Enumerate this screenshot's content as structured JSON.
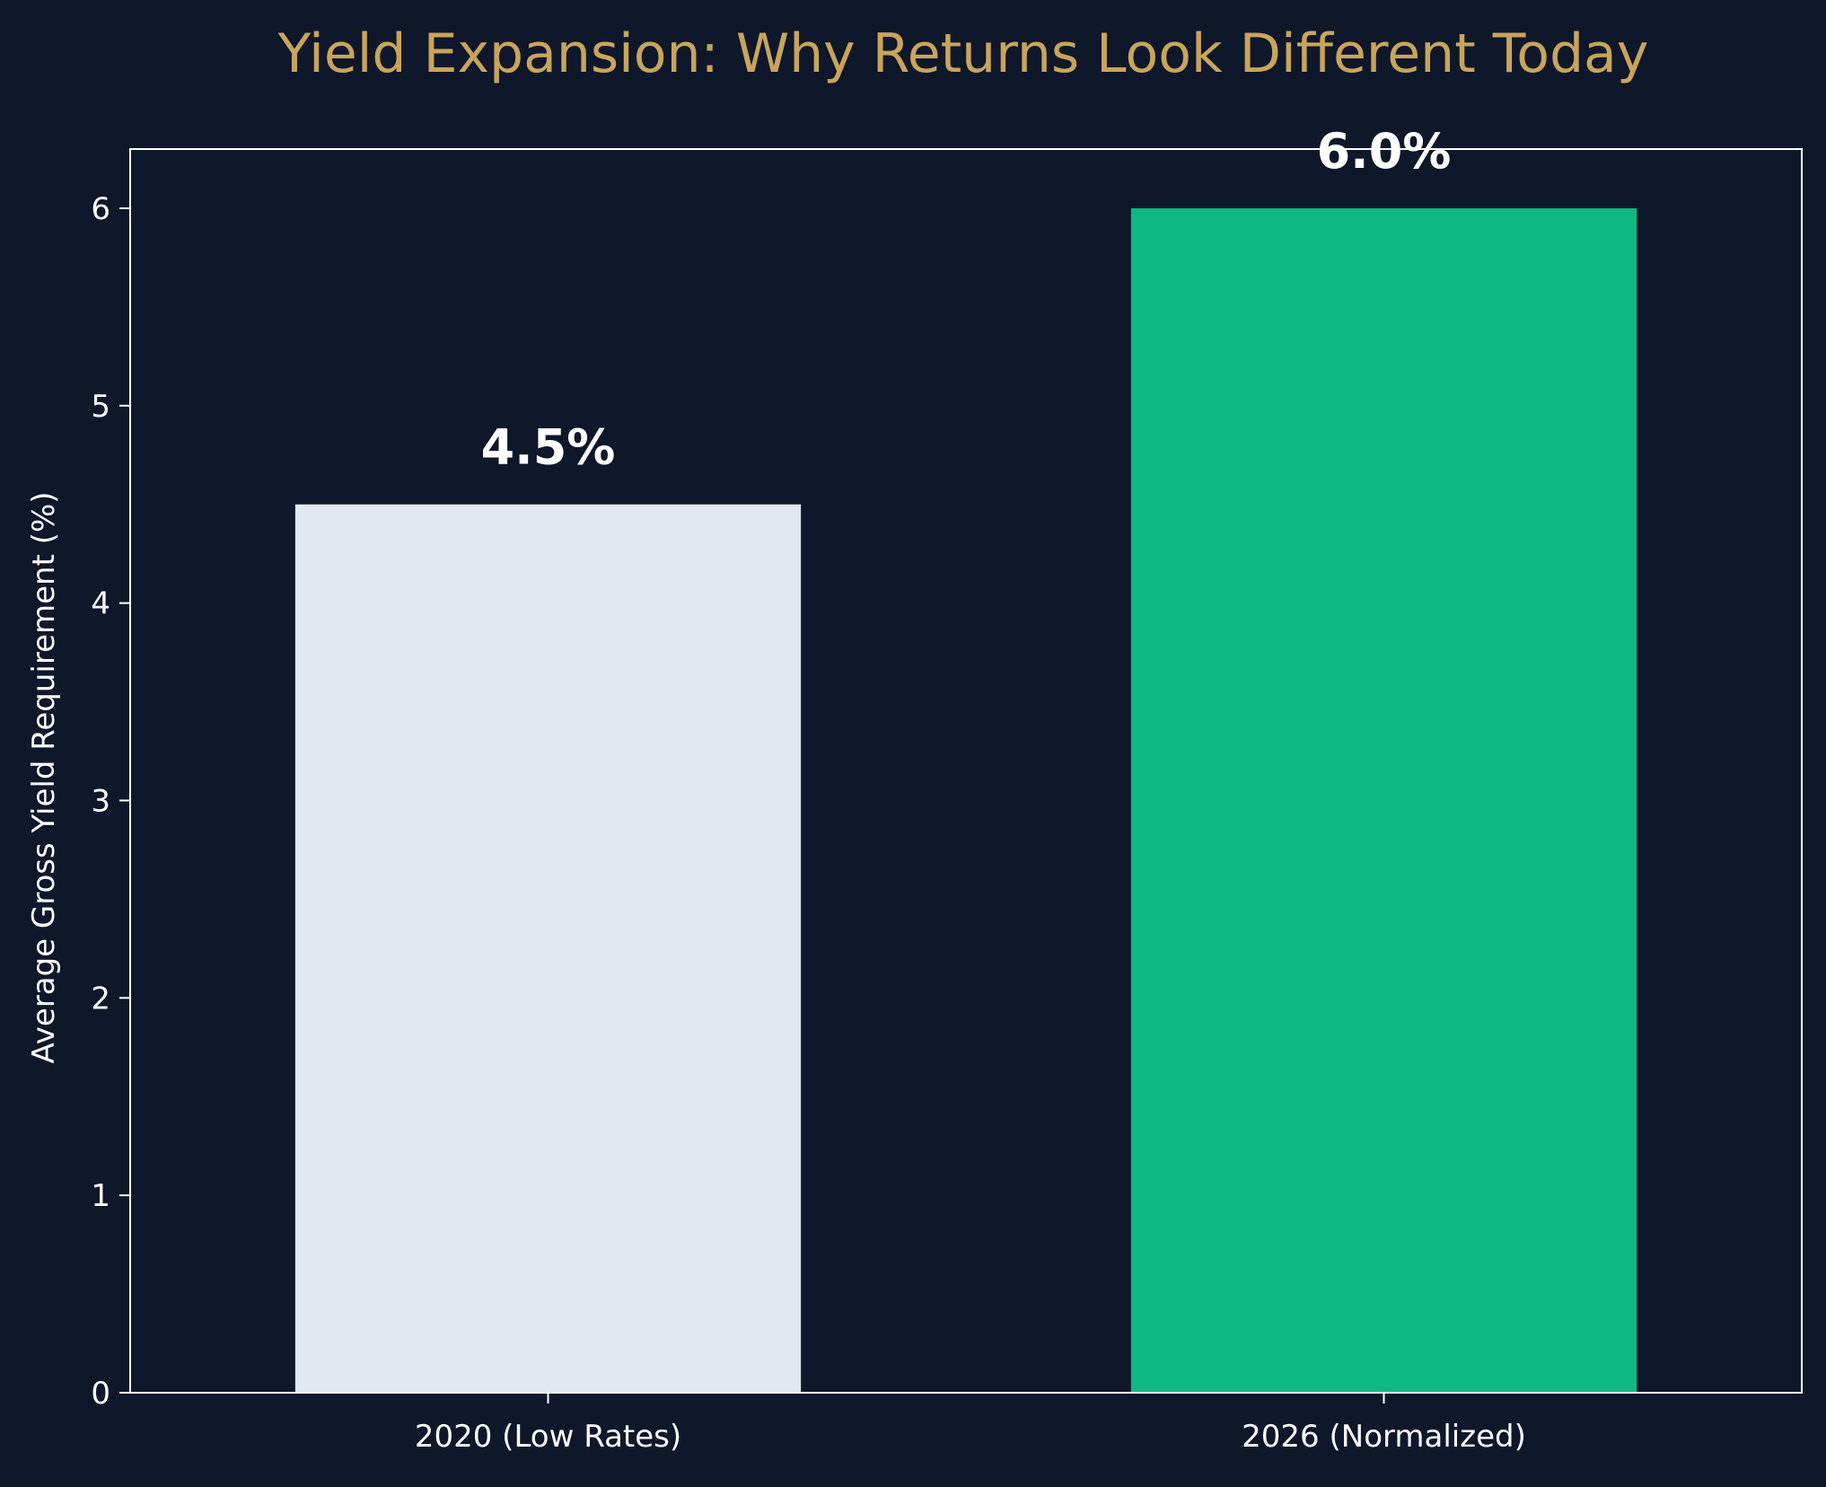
{
  "colors": {
    "background": "#0f172a",
    "title": "#c9a55a",
    "text": "#ffffff",
    "axis": "#ffffff",
    "bar_2020": "#e2e8f0",
    "bar_2026": "#10b981"
  },
  "chart_data": {
    "type": "bar",
    "title": "Yield Expansion: Why Returns Look Different Today",
    "xlabel": "",
    "ylabel": "Average Gross Yield Requirement (%)",
    "categories": [
      "2020 (Low Rates)",
      "2026 (Normalized)"
    ],
    "values": [
      4.5,
      6.0
    ],
    "data_labels": [
      "4.5%",
      "6.0%"
    ],
    "bar_colors": [
      "#e2e8f0",
      "#10b981"
    ],
    "ylim": [
      0,
      6.3
    ],
    "yticks": [
      0,
      1,
      2,
      3,
      4,
      5,
      6
    ],
    "ytick_labels": [
      "0",
      "1",
      "2",
      "3",
      "4",
      "5",
      "6"
    ],
    "grid": false,
    "legend": "none"
  }
}
